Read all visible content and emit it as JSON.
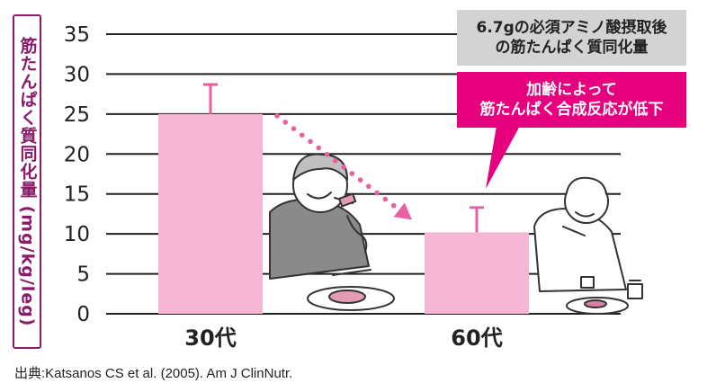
{
  "chart_data": {
    "type": "bar",
    "ylabel": "筋たんぱく質同化量 (mg/kg/leg)",
    "categories": [
      "30代",
      "60代"
    ],
    "values": [
      25,
      10.2
    ],
    "error_top": [
      28.7,
      13.3
    ],
    "ylim": [
      0,
      35
    ],
    "yticks": [
      "0",
      "5",
      "10",
      "15",
      "20",
      "25",
      "30",
      "35"
    ],
    "grid": true,
    "bar_color": "#f4b6d2",
    "error_color": "#e8609e",
    "arrow_color": "#e8609e",
    "grid_color": "#222222"
  },
  "annotations": {
    "gray_box": "6.7gの必須アミノ酸摂取後\nの筋たんぱく質同化量",
    "pink_box": "加齢によって\n筋たんぱく合成反応が低下",
    "pink_box_color": "#e6007e"
  },
  "illustrations": {
    "left_figure": "young-man-eating-steak-icon",
    "right_figure": "older-man-eating-small-meal-icon"
  },
  "source": "出典:Katsanos CS et al. (2005). Am J ClinNutr."
}
